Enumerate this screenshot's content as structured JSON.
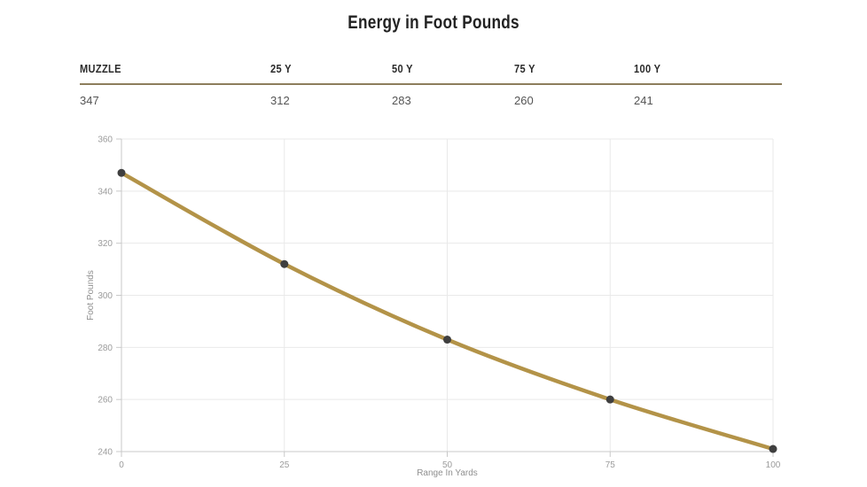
{
  "page": {
    "title": "Energy in Foot Pounds"
  },
  "table": {
    "headers": [
      "MUZZLE",
      "25 Y",
      "50 Y",
      "75 Y",
      "100 Y"
    ],
    "values": [
      "347",
      "312",
      "283",
      "260",
      "241"
    ]
  },
  "chart_data": {
    "type": "line",
    "x": [
      0,
      25,
      50,
      75,
      100
    ],
    "values": [
      347,
      312,
      283,
      260,
      241
    ],
    "series_name": "Energy",
    "title": "Energy in Foot Pounds",
    "xlabel": "Range In Yards",
    "ylabel": "Foot Pounds",
    "xlim": [
      0,
      100
    ],
    "ylim": [
      240,
      360
    ],
    "xticks": [
      0,
      25,
      50,
      75,
      100
    ],
    "yticks": [
      240,
      260,
      280,
      300,
      320,
      340,
      360
    ],
    "grid": true,
    "legend": false,
    "line_color": "#b39348",
    "point_color": "#3f3f3f",
    "grid_color": "#e9e9e9",
    "axis_color": "#c9c9c9",
    "tick_label_color": "#9b9b9b",
    "axis_title_color": "#8f8f8f"
  },
  "colors": {
    "accent_gold": "#b39348",
    "table_divider": "#8d7e5c",
    "title_text": "#222222",
    "header_text": "#2b2b2b",
    "value_text": "#555555",
    "background": "#ffffff"
  }
}
